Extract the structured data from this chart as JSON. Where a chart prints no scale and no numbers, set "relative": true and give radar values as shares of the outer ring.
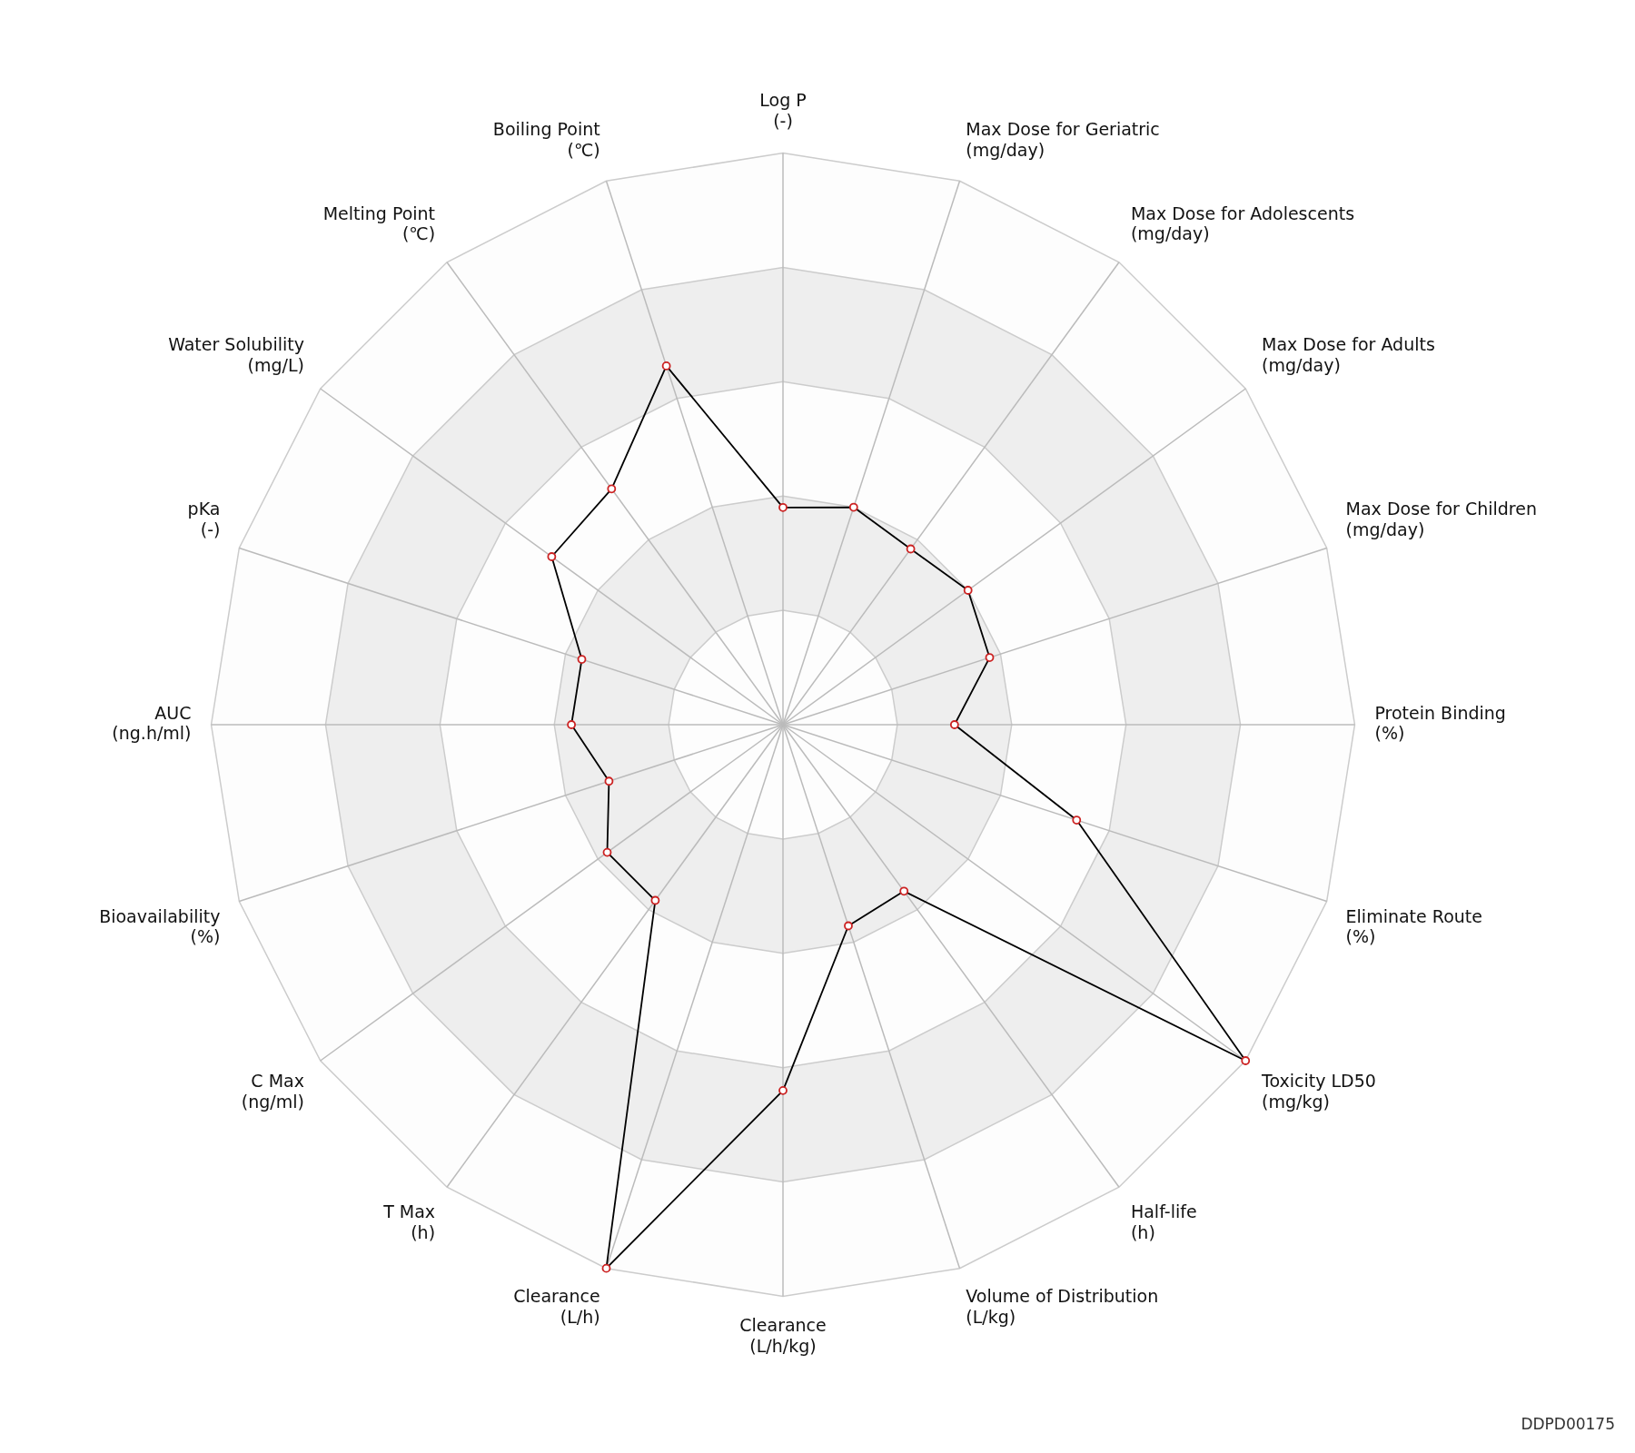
{
  "chart_data": {
    "type": "radar",
    "relative": true,
    "marker": "circle",
    "line_style": "solid",
    "legend": false,
    "grid": true,
    "categories": [
      "Log P\n(-)",
      "Max Dose for Geriatric\n(mg/day)",
      "Max Dose for Adolescents\n(mg/day)",
      "Max Dose for Adults\n(mg/day)",
      "Max Dose for Children\n(mg/day)",
      "Protein Binding\n(%)",
      "Eliminate Route\n(%)",
      "Toxicity LD50\n(mg/kg)",
      "Half-life\n(h)",
      "Volume of Distribution\n(L/kg)",
      "Clearance\n(L/h/kg)",
      "Clearance\n(L/h)",
      "T Max\n(h)",
      "C Max\n(ng/ml)",
      "Bioavailability\n(%)",
      "AUC\n(ng.h/ml)",
      "pKa\n(-)",
      "Water Solubility\n(mg/L)",
      "Melting Point\n(℃)",
      "Boiling Point\n(℃)"
    ],
    "series": [
      {
        "color": "#000000",
        "values": [
          0.38,
          0.4,
          0.38,
          0.4,
          0.38,
          0.3,
          0.54,
          1.0,
          0.36,
          0.37,
          0.64,
          1.0,
          0.38,
          0.38,
          0.32,
          0.37,
          0.37,
          0.5,
          0.51,
          0.66
        ]
      }
    ],
    "annotations": [
      "DDPD00175"
    ]
  }
}
